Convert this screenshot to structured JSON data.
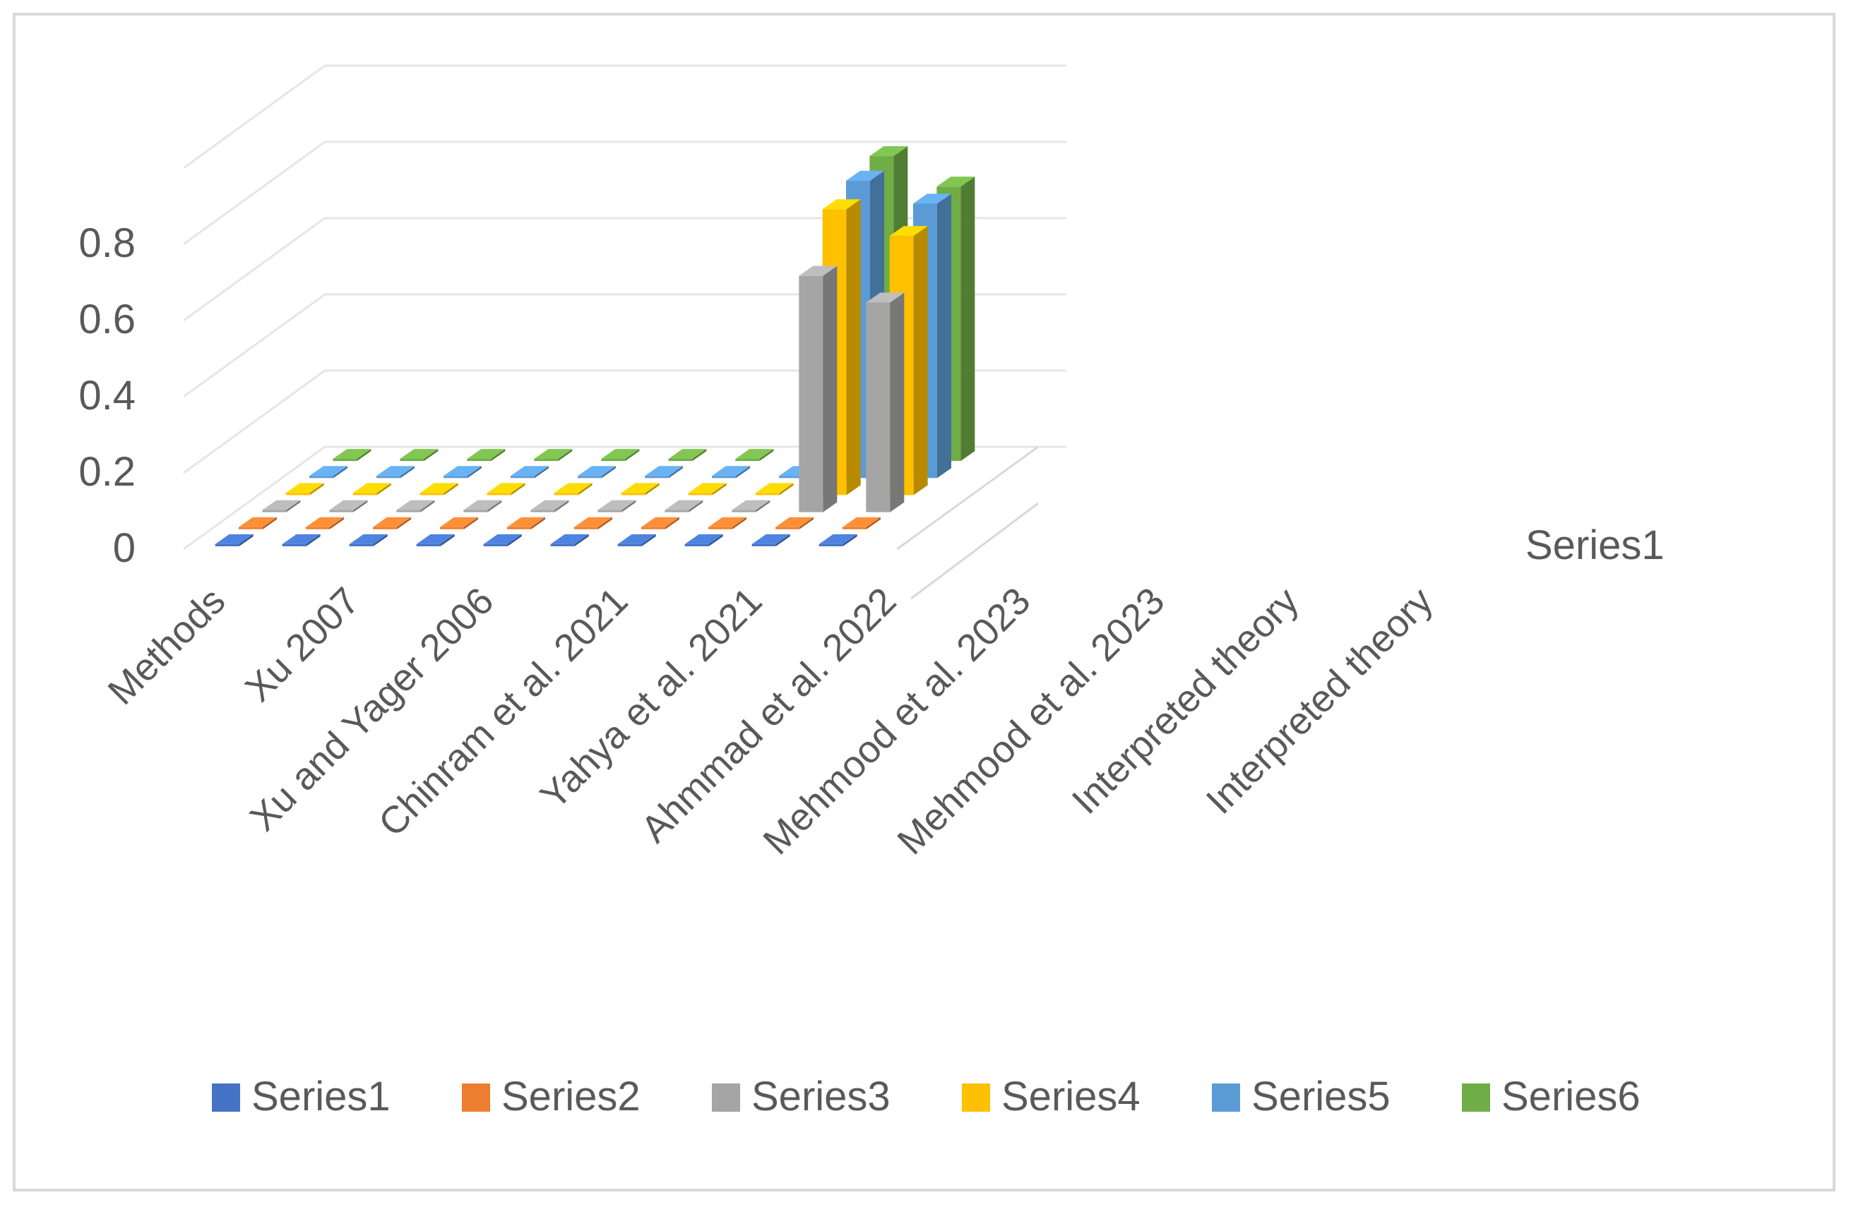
{
  "chart_data": {
    "type": "bar",
    "subtype": "3d-column",
    "categories": [
      "Methods",
      "Xu 2007",
      "Xu and Yager 2006",
      "Chinram et al. 2021",
      "Yahya et al. 2021",
      "Ahmmad et al. 2022",
      "Mehmood et al. 2023",
      "Mehmood et al. 2023",
      "Interpreted theory",
      "Interpreted theory"
    ],
    "series": [
      {
        "name": "Series1",
        "color": "#4472c4",
        "values": [
          0,
          0,
          0,
          0,
          0,
          0,
          0,
          0,
          0,
          0
        ]
      },
      {
        "name": "Series2",
        "color": "#ed7d31",
        "values": [
          0,
          0,
          0,
          0,
          0,
          0,
          0,
          0,
          0,
          0
        ]
      },
      {
        "name": "Series3",
        "color": "#a5a5a5",
        "values": [
          0,
          0,
          0,
          0,
          0,
          0,
          0,
          0,
          0.62,
          0.55
        ]
      },
      {
        "name": "Series4",
        "color": "#ffc000",
        "values": [
          0,
          0,
          0,
          0,
          0,
          0,
          0,
          0,
          0.75,
          0.68
        ]
      },
      {
        "name": "Series5",
        "color": "#5b9bd5",
        "values": [
          0,
          0,
          0,
          0,
          0,
          0,
          0,
          0,
          0.78,
          0.72
        ]
      },
      {
        "name": "Series6",
        "color": "#70ad47",
        "values": [
          0,
          0,
          0,
          0,
          0,
          0,
          0,
          0,
          0.8,
          0.72
        ]
      }
    ],
    "y_ticks": [
      "0",
      "0.2",
      "0.4",
      "0.6",
      "0.8"
    ],
    "ylim": [
      0,
      1
    ],
    "depth_axis_label": "Series1",
    "legend_position": "bottom",
    "grid": true,
    "title": "",
    "xlabel": "",
    "ylabel": ""
  }
}
